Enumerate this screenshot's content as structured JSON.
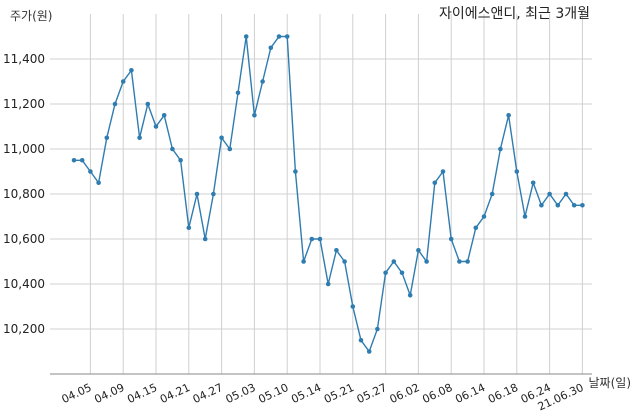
{
  "chart_data": {
    "type": "line",
    "title": "자이에스앤디, 최근 3개월",
    "ylabel": "주가(원)",
    "xlabel": "날짜(일)",
    "ylim": [
      10000,
      11600
    ],
    "yticks": [
      10200,
      10400,
      10600,
      10800,
      11000,
      11200,
      11400
    ],
    "ytick_labels": [
      "10,200",
      "10,400",
      "10,600",
      "10,800",
      "11,000",
      "11,200",
      "11,400"
    ],
    "xtick_labels": [
      "04.05",
      "04.09",
      "04.15",
      "04.21",
      "04.27",
      "05.03",
      "05.10",
      "05.14",
      "05.21",
      "05.27",
      "06.02",
      "06.08",
      "06.14",
      "06.18",
      "06.24",
      "21.06.30"
    ],
    "xtick_positions": [
      2,
      6,
      10,
      14,
      18,
      22,
      26,
      30,
      34,
      38,
      42,
      46,
      50,
      54,
      58,
      62
    ],
    "grid": true,
    "color": "#2f7cb0",
    "series": [
      {
        "values": [
          10950,
          10950,
          10900,
          10850,
          11050,
          11200,
          11300,
          11350,
          11050,
          11200,
          11100,
          11150,
          11000,
          10950,
          10650,
          10800,
          10600,
          10800,
          11050,
          11000,
          11250,
          11500,
          11150,
          11300,
          11450,
          11500,
          11500,
          10900,
          10500,
          10600,
          10600,
          10400,
          10550,
          10500,
          10300,
          10150,
          10100,
          10200,
          10450,
          10500,
          10450,
          10350,
          10550,
          10500,
          10850,
          10900,
          10600,
          10500,
          10500,
          10650,
          10700,
          10800,
          11000,
          11150,
          10900,
          10700,
          10850,
          10750,
          10800,
          10750,
          10800,
          10750,
          10750
        ]
      }
    ]
  }
}
